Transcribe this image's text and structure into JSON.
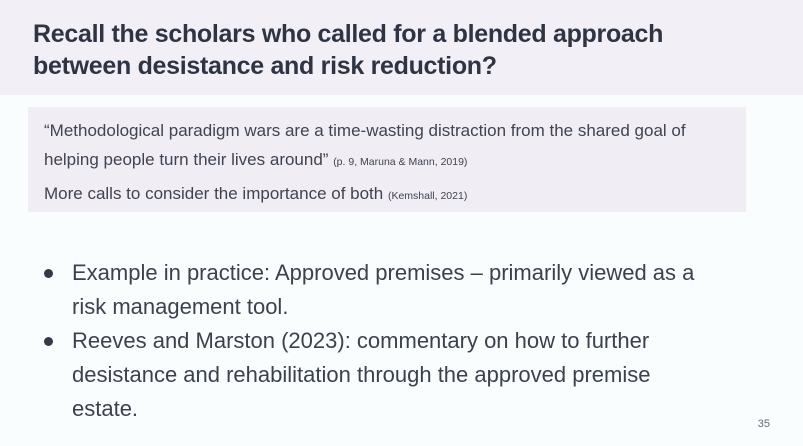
{
  "slide": {
    "title": "Recall the scholars who called for a blended approach between desistance and risk reduction?",
    "quote_box": {
      "quote": "“Methodological paradigm wars are a time-wasting distraction from the shared goal of helping people turn their lives around” ",
      "quote_citation": "(p. 9, Maruna & Mann, 2019)",
      "secondary": "More calls to consider the importance of both ",
      "secondary_citation": "(Kemshall, 2021)"
    },
    "bullets": [
      "Example in practice: Approved premises – primarily viewed as a risk management tool.",
      "Reeves and Marston (2023): commentary on how to further desistance and rehabilitation through the approved premise estate."
    ],
    "page_number": "35"
  },
  "colors": {
    "title_band_bg": "#f2f0f6",
    "body_bg": "#fafdfd",
    "quote_box_bg": "#f0edf5",
    "title_text": "#2e3443",
    "quote_text": "#3f4450",
    "bullet_text": "#3c414e",
    "page_number_text": "#5f6b77"
  }
}
